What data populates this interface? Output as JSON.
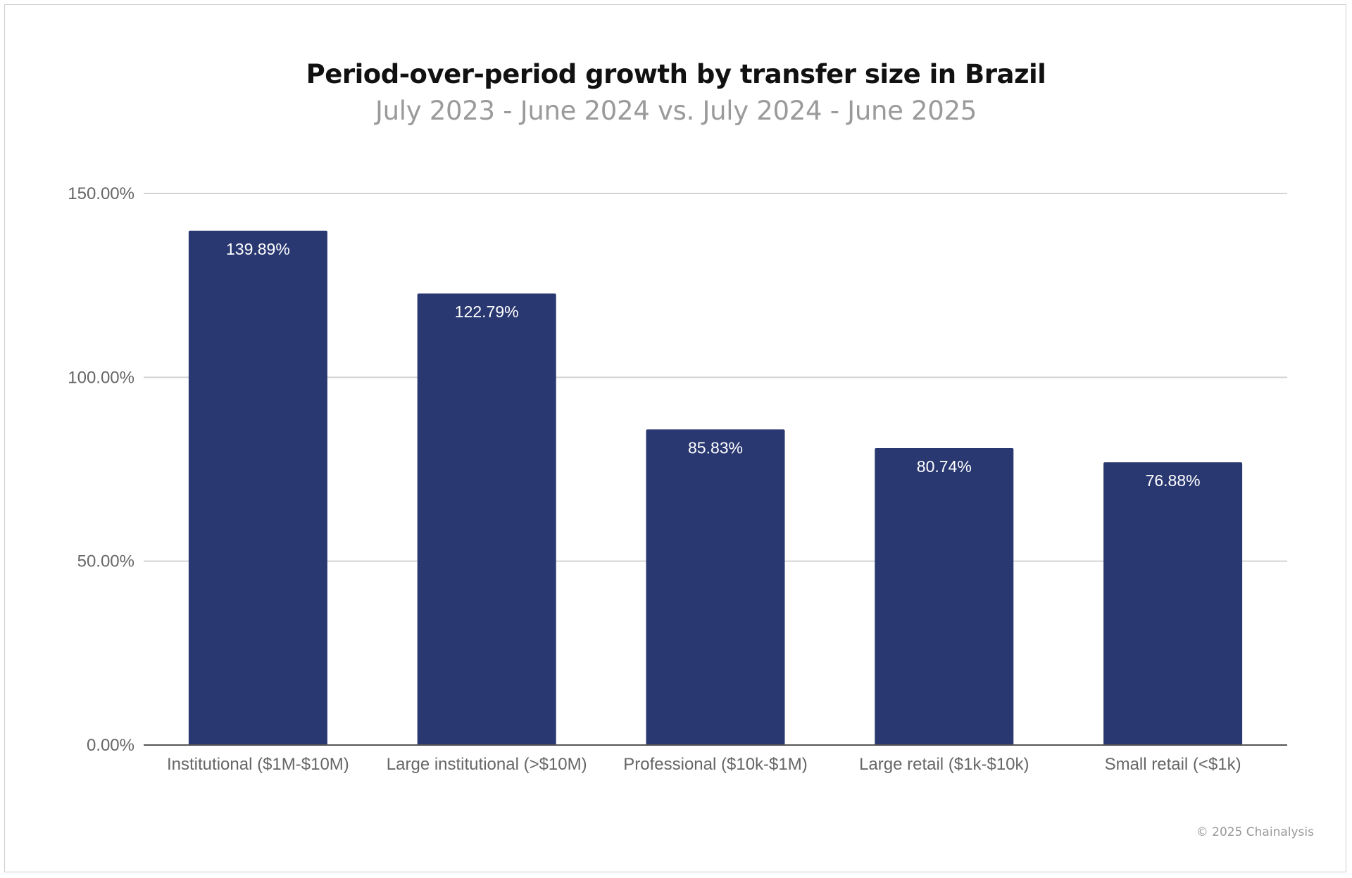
{
  "chart_data": {
    "type": "bar",
    "title": "Period-over-period growth by transfer size in Brazil",
    "subtitle": "July 2023 - June 2024 vs. July 2024 - June 2025",
    "categories": [
      "Institutional ($1M-$10M)",
      "Large institutional (>$10M)",
      "Professional ($10k-$1M)",
      "Large retail ($1k-$10k)",
      "Small retail (<$1k)"
    ],
    "values": [
      139.89,
      122.79,
      85.83,
      80.74,
      76.88
    ],
    "data_labels": [
      "139.89%",
      "122.79%",
      "85.83%",
      "80.74%",
      "76.88%"
    ],
    "xlabel": "",
    "ylabel": "",
    "ylim": [
      0,
      150
    ],
    "yticks": [
      0,
      50,
      100,
      150
    ],
    "ytick_labels": [
      "0.00%",
      "50.00%",
      "100.00%",
      "150.00%"
    ],
    "grid": true,
    "bar_color": "#293871"
  },
  "footer": {
    "copyright": "© 2025 Chainalysis"
  }
}
